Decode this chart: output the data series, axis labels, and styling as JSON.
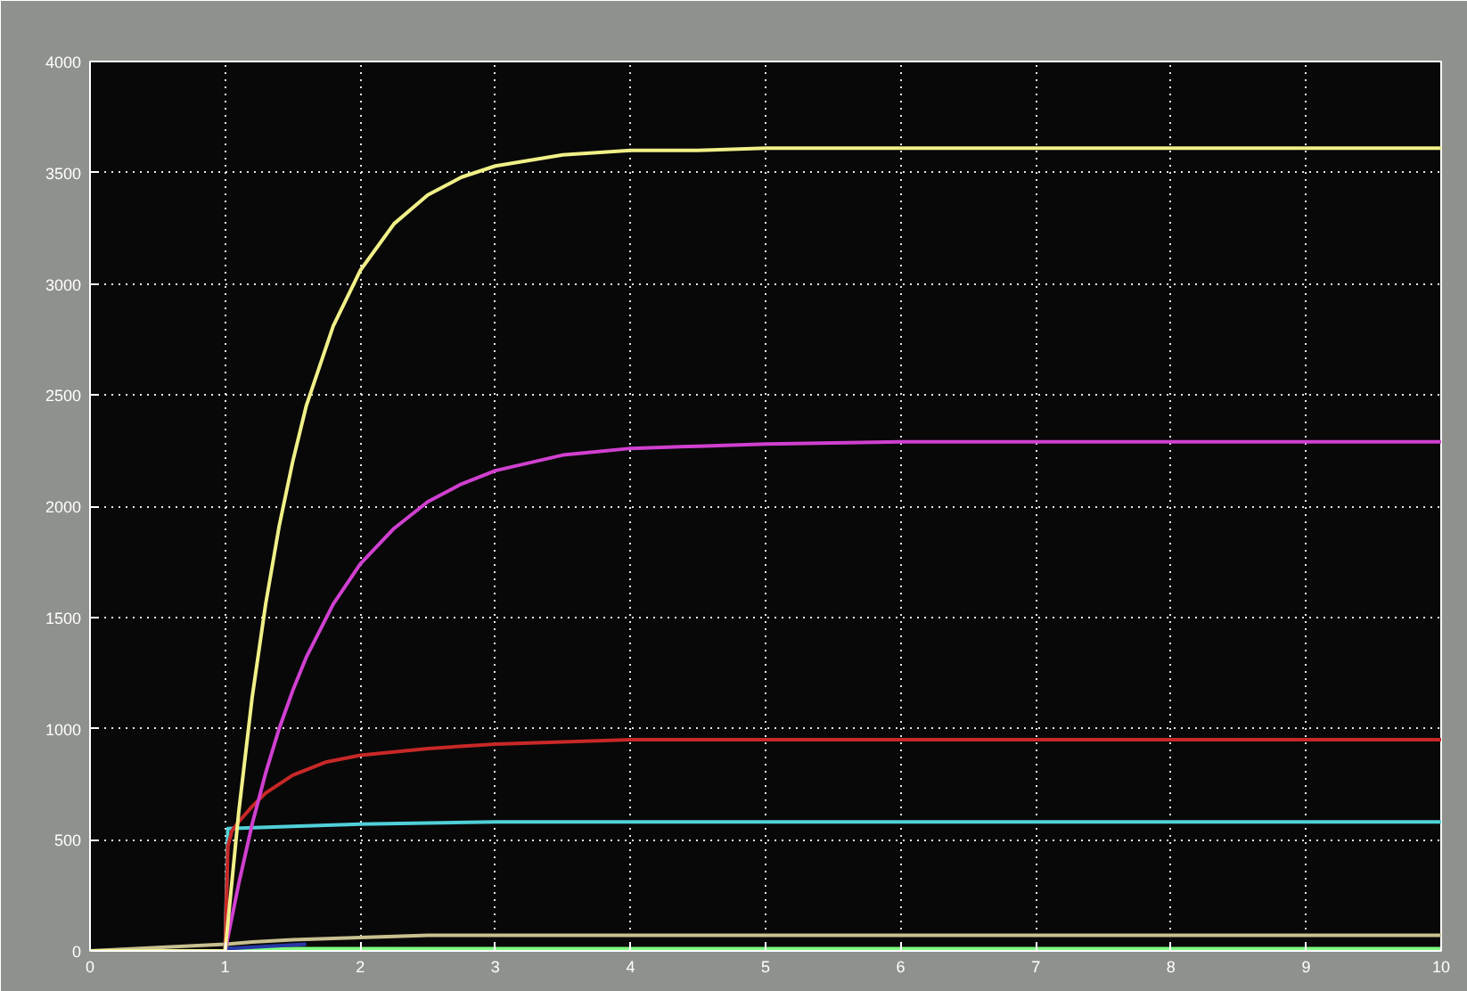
{
  "chart_data": {
    "type": "line",
    "xlim": [
      0,
      10
    ],
    "ylim": [
      0,
      4000
    ],
    "xticks": [
      0,
      1,
      2,
      3,
      4,
      5,
      6,
      7,
      8,
      9,
      10
    ],
    "yticks": [
      0,
      500,
      1000,
      1500,
      2000,
      2500,
      3000,
      3500,
      4000
    ],
    "grid": true,
    "line_style": "solid",
    "marker": "none",
    "series": [
      {
        "color": "#80ff80",
        "x": [
          1,
          10
        ],
        "values": [
          10,
          10
        ]
      },
      {
        "color": "#c8c090",
        "x": [
          0,
          1,
          1.2,
          1.5,
          2,
          2.5,
          3,
          4,
          5,
          10
        ],
        "values": [
          0,
          30,
          40,
          50,
          60,
          70,
          70,
          70,
          70,
          70
        ]
      },
      {
        "color": "#2838a8",
        "x": [
          1,
          1.3,
          1.6
        ],
        "values": [
          10,
          20,
          30
        ]
      },
      {
        "color": "#50d0d8",
        "x": [
          0,
          1,
          1.02,
          1.5,
          2,
          3,
          4,
          10
        ],
        "values": [
          0,
          0,
          550,
          560,
          570,
          580,
          580,
          580
        ]
      },
      {
        "color": "#c82828",
        "x": [
          0,
          1,
          1.02,
          1.05,
          1.1,
          1.2,
          1.3,
          1.5,
          1.75,
          2,
          2.5,
          3,
          3.5,
          4,
          10
        ],
        "values": [
          0,
          0,
          470,
          540,
          580,
          650,
          710,
          790,
          850,
          880,
          910,
          930,
          940,
          950,
          950
        ]
      },
      {
        "color": "#d040d0",
        "x": [
          0,
          1,
          1.1,
          1.2,
          1.3,
          1.4,
          1.5,
          1.6,
          1.8,
          2,
          2.25,
          2.5,
          2.75,
          3,
          3.5,
          4,
          4.5,
          5,
          6,
          10
        ],
        "values": [
          0,
          0,
          300,
          570,
          800,
          1000,
          1170,
          1320,
          1560,
          1740,
          1900,
          2020,
          2100,
          2160,
          2230,
          2260,
          2270,
          2280,
          2290,
          2290
        ]
      },
      {
        "color": "#f0f088",
        "x": [
          0,
          1,
          1.1,
          1.2,
          1.3,
          1.4,
          1.5,
          1.6,
          1.8,
          2,
          2.25,
          2.5,
          2.75,
          3,
          3.5,
          4,
          4.5,
          5,
          10
        ],
        "values": [
          0,
          0,
          620,
          1140,
          1560,
          1910,
          2200,
          2450,
          2810,
          3060,
          3270,
          3400,
          3480,
          3530,
          3580,
          3600,
          3600,
          3610,
          3610
        ]
      }
    ]
  }
}
